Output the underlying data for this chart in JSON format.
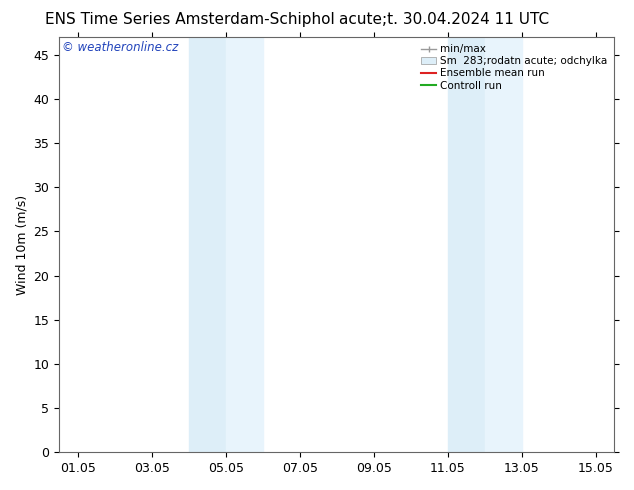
{
  "title_left": "ENS Time Series Amsterdam-Schiphol",
  "title_right": "acute;t. 30.04.2024 11 UTC",
  "ylabel": "Wind 10m (m/s)",
  "yticks": [
    0,
    5,
    10,
    15,
    20,
    25,
    30,
    35,
    40,
    45
  ],
  "ylim": [
    0,
    47
  ],
  "xtick_labels": [
    "01.05",
    "03.05",
    "05.05",
    "07.05",
    "09.05",
    "11.05",
    "13.05",
    "15.05"
  ],
  "xtick_positions": [
    0,
    2,
    4,
    6,
    8,
    10,
    12,
    14
  ],
  "xlim": [
    -0.5,
    14.5
  ],
  "shade_bands": [
    [
      3.0,
      4.0
    ],
    [
      4.0,
      5.0
    ],
    [
      10.0,
      11.0
    ],
    [
      11.0,
      12.0
    ]
  ],
  "shade_colors": [
    "#ddeef8",
    "#e8f4fc",
    "#ddeef8",
    "#e8f4fc"
  ],
  "watermark_text": "© weatheronline.cz",
  "watermark_color": "#2244bb",
  "legend_labels": [
    "min/max",
    "Sm  283;rodatn acute; odchylka",
    "Ensemble mean run",
    "Controll run"
  ],
  "legend_line_color": "#999999",
  "legend_band_color": "#ddeef8",
  "legend_red": "#dd2222",
  "legend_green": "#22aa22",
  "background_color": "#ffffff",
  "spine_color": "#666666",
  "title_fontsize": 11,
  "axis_fontsize": 9,
  "tick_fontsize": 9
}
